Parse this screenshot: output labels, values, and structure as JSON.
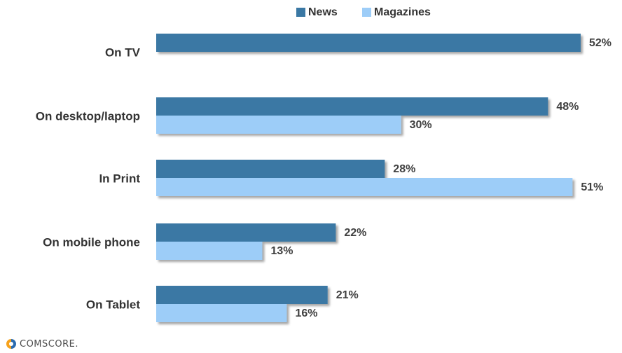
{
  "chart_data": {
    "type": "bar",
    "orientation": "horizontal",
    "categories": [
      "On TV",
      "On desktop/laptop",
      "In Print",
      "On mobile phone",
      "On Tablet"
    ],
    "series": [
      {
        "name": "News",
        "values": [
          52,
          48,
          28,
          22,
          21
        ],
        "labels": [
          "52%",
          "48%",
          "28%",
          "22%",
          "21%"
        ],
        "color": "#3a78a4"
      },
      {
        "name": "Magazines",
        "values": [
          null,
          30,
          51,
          13,
          16
        ],
        "labels": [
          "",
          "30%",
          "51%",
          "13%",
          "16%"
        ],
        "color": "#9dcdf8"
      }
    ],
    "value_unit": "%",
    "xlim": [
      0,
      52
    ],
    "legend_position": "top-center",
    "grid": false
  },
  "brand": {
    "name": "comScore.",
    "icon": "comscore-logo-icon"
  }
}
